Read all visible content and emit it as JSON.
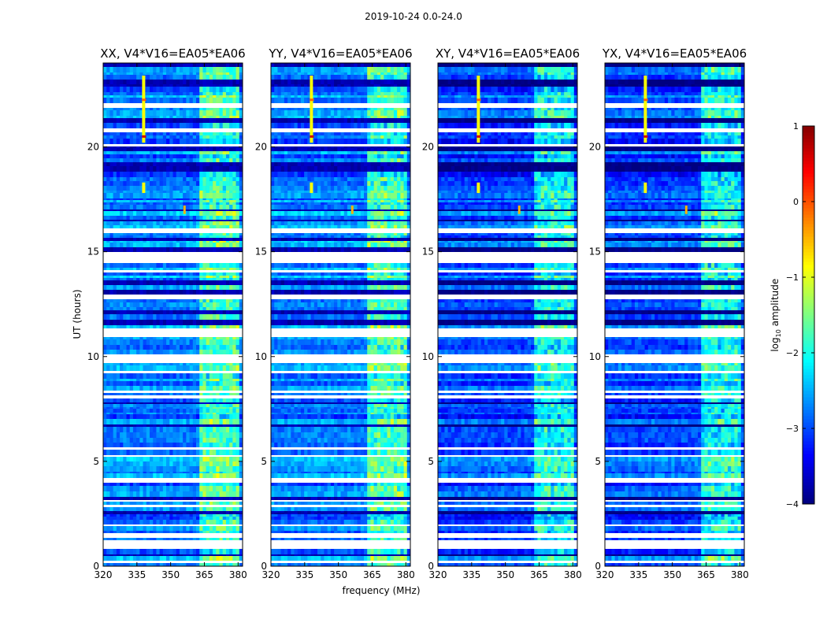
{
  "figure_title": "2019-10-24 0.0-24.0",
  "chart_data": {
    "type": "heatmap",
    "panels": [
      {
        "title": "XX, V4*V16=EA05*EA06",
        "pol": "XX"
      },
      {
        "title": "YY, V4*V16=EA05*EA06",
        "pol": "YY"
      },
      {
        "title": "XY, V4*V16=EA05*EA06",
        "pol": "XY"
      },
      {
        "title": "YX, V4*V16=EA05*EA06",
        "pol": "YX"
      }
    ],
    "xlabel": "frequency (MHz)",
    "ylabel": "UT (hours)",
    "xlim": [
      320,
      382
    ],
    "ylim": [
      0,
      24
    ],
    "xticks": [
      320,
      335,
      350,
      365,
      380
    ],
    "yticks": [
      0,
      5,
      10,
      15,
      20
    ],
    "colorbar": {
      "label_prefix": "log",
      "label_sub": "10",
      "label_suffix": " amplitude",
      "range": [
        -4,
        1
      ],
      "ticks": [
        1,
        0,
        -1,
        -2,
        -3,
        -4
      ],
      "tick_labels": [
        "1",
        "0",
        "−1",
        "−2",
        "−3",
        "−4"
      ],
      "colormap": "jet"
    },
    "features": {
      "bright_band_MHz": [
        363,
        380
      ],
      "rfi_line_MHz": 338,
      "rfi_line_hours": [
        [
          20.2,
          23.4
        ],
        [
          17.8,
          18.3
        ]
      ],
      "rfi_spot": {
        "MHz": 356,
        "hours": [
          16.8,
          17.2
        ]
      }
    }
  }
}
